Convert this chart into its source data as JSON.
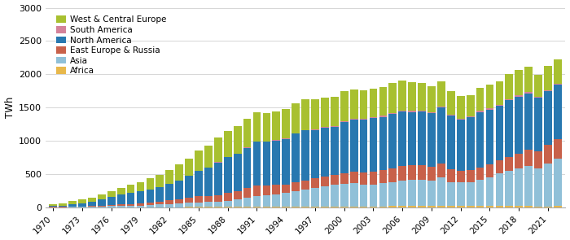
{
  "years": [
    1970,
    1971,
    1972,
    1973,
    1974,
    1975,
    1976,
    1977,
    1978,
    1979,
    1980,
    1981,
    1982,
    1983,
    1984,
    1985,
    1986,
    1987,
    1988,
    1989,
    1990,
    1991,
    1992,
    1993,
    1994,
    1995,
    1996,
    1997,
    1998,
    1999,
    2000,
    2001,
    2002,
    2003,
    2004,
    2005,
    2006,
    2007,
    2008,
    2009,
    2010,
    2011,
    2012,
    2013,
    2014,
    2015,
    2016,
    2017,
    2018,
    2019,
    2020,
    2021,
    2022
  ],
  "regions": [
    "Africa",
    "Asia",
    "East Europe & Russia",
    "North America",
    "South America",
    "West & Central Europe"
  ],
  "colors": [
    "#e8b84b",
    "#90c0d8",
    "#c8614a",
    "#2878b0",
    "#d4829a",
    "#a8c030"
  ],
  "data": {
    "Africa": [
      0,
      0,
      0,
      0,
      0,
      0,
      0,
      0,
      0,
      0,
      0,
      0,
      0,
      0,
      2,
      4,
      4,
      4,
      4,
      4,
      4,
      6,
      6,
      6,
      6,
      8,
      8,
      8,
      10,
      10,
      12,
      12,
      12,
      12,
      12,
      14,
      14,
      14,
      14,
      14,
      14,
      14,
      14,
      14,
      14,
      14,
      14,
      14,
      14,
      14,
      12,
      12,
      14
    ],
    "Asia": [
      0,
      0,
      2,
      4,
      6,
      10,
      15,
      20,
      22,
      25,
      35,
      42,
      48,
      55,
      62,
      68,
      72,
      80,
      95,
      115,
      135,
      160,
      175,
      190,
      205,
      230,
      255,
      280,
      305,
      325,
      340,
      345,
      330,
      330,
      345,
      360,
      385,
      395,
      395,
      385,
      430,
      360,
      355,
      365,
      395,
      440,
      490,
      530,
      565,
      600,
      575,
      640,
      710
    ],
    "East Europe & Russia": [
      2,
      3,
      5,
      7,
      10,
      12,
      16,
      20,
      25,
      28,
      35,
      42,
      52,
      65,
      78,
      95,
      88,
      100,
      115,
      125,
      145,
      160,
      150,
      140,
      132,
      138,
      142,
      144,
      148,
      152,
      162,
      172,
      183,
      192,
      202,
      212,
      222,
      222,
      218,
      212,
      218,
      192,
      172,
      182,
      192,
      192,
      200,
      212,
      226,
      250,
      258,
      285,
      305
    ],
    "North America": [
      18,
      22,
      35,
      50,
      65,
      95,
      120,
      150,
      170,
      185,
      195,
      215,
      245,
      285,
      325,
      380,
      430,
      490,
      535,
      555,
      610,
      660,
      655,
      665,
      685,
      730,
      750,
      730,
      730,
      720,
      770,
      790,
      790,
      810,
      800,
      820,
      820,
      800,
      810,
      800,
      840,
      810,
      775,
      790,
      830,
      820,
      820,
      850,
      860,
      850,
      800,
      810,
      815
    ],
    "South America": [
      0,
      0,
      0,
      0,
      0,
      0,
      0,
      0,
      0,
      0,
      0,
      0,
      0,
      0,
      0,
      0,
      0,
      2,
      2,
      2,
      2,
      4,
      4,
      5,
      6,
      8,
      9,
      10,
      11,
      12,
      14,
      16,
      17,
      14,
      14,
      14,
      16,
      16,
      16,
      16,
      16,
      16,
      15,
      15,
      16,
      17,
      18,
      18,
      19,
      19,
      16,
      17,
      18
    ],
    "West & Central Europe": [
      22,
      35,
      50,
      55,
      65,
      75,
      95,
      105,
      115,
      140,
      165,
      185,
      210,
      240,
      268,
      300,
      330,
      370,
      400,
      420,
      430,
      440,
      430,
      430,
      440,
      450,
      460,
      455,
      445,
      445,
      445,
      435,
      432,
      425,
      435,
      445,
      448,
      438,
      415,
      395,
      374,
      350,
      336,
      324,
      344,
      355,
      356,
      374,
      376,
      374,
      335,
      364,
      362
    ]
  },
  "ylabel": "TWh",
  "ylim": [
    0,
    3000
  ],
  "yticks": [
    0,
    500,
    1000,
    1500,
    2000,
    2500,
    3000
  ],
  "background_color": "#ffffff",
  "grid_color": "#d0d0d0",
  "legend_order": [
    "West & Central Europe",
    "South America",
    "North America",
    "East Europe & Russia",
    "Asia",
    "Africa"
  ]
}
